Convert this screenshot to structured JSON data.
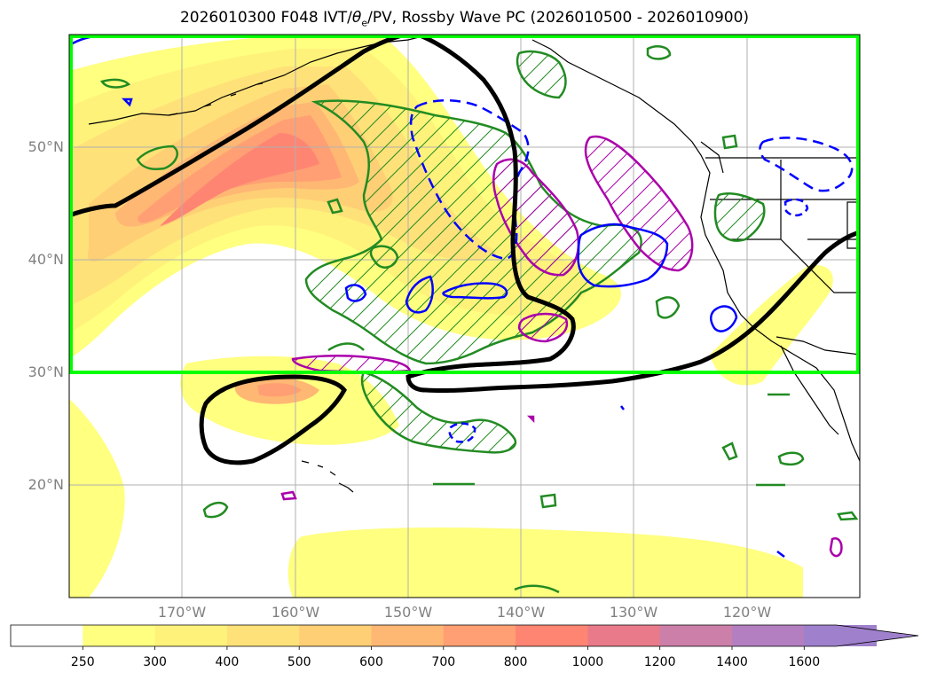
{
  "title": {
    "prefix": "2026010300 F048 IVT/",
    "theta_symbol": "θ",
    "theta_subscript": "e",
    "suffix": "/PV, Rossby Wave PC (2026010500 - 2026010900)"
  },
  "map": {
    "lon_range": [
      -180,
      -110
    ],
    "lat_range": [
      10,
      60
    ],
    "lat_labels": [
      "50°N",
      "40°N",
      "30°N",
      "20°N"
    ],
    "lon_labels": [
      "170°W",
      "160°W",
      "150°W",
      "140°W",
      "130°W",
      "120°W"
    ],
    "region_box": {
      "lon": [
        -180,
        -110
      ],
      "lat": [
        30,
        60
      ],
      "color": "#00ff00"
    },
    "colors": {
      "geopotential_contour": "#000000",
      "positive_pv_contour": "#0000ff",
      "negative_pv_contour": "#aa00aa",
      "theta_e_contour": "#228b22",
      "coastline": "#000000",
      "gridline": "#b0b0b0"
    }
  },
  "colorbar": {
    "levels": [
      "250",
      "300",
      "400",
      "500",
      "600",
      "700",
      "800",
      "1000",
      "1200",
      "1400",
      "1600"
    ],
    "colors": [
      "#ffffff",
      "#ffff80",
      "#fff27a",
      "#ffe179",
      "#ffcf75",
      "#ffb774",
      "#ff9f73",
      "#ff8573",
      "#e87a8a",
      "#cc7fa8",
      "#b37fc0",
      "#9f80cc"
    ],
    "extend": "max",
    "units_hint": "IVT"
  }
}
